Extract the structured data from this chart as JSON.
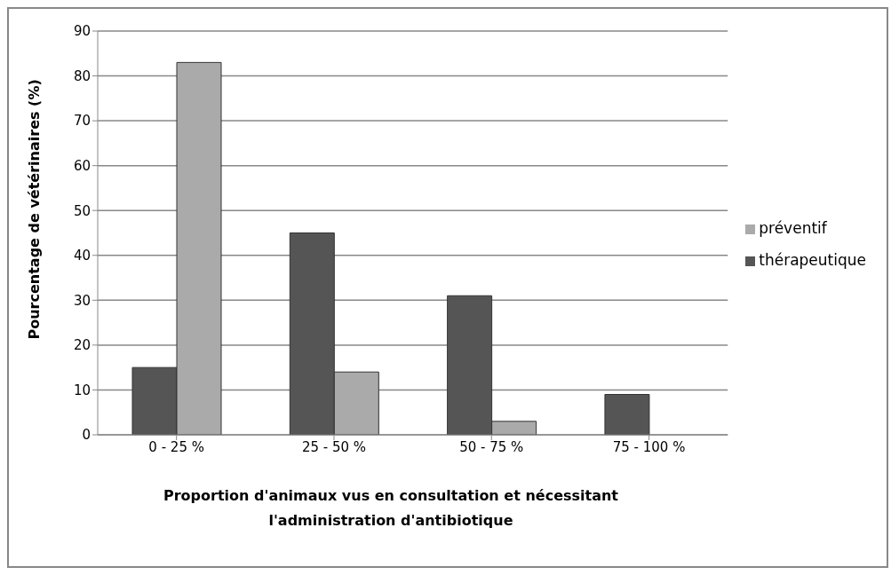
{
  "chart_data": {
    "type": "bar",
    "xlabel": "Proportion d'animaux vus en consultation et nécessitant l'administration d'antibiotique",
    "ylabel": "Pourcentage de vétérinaires (%)",
    "categories": [
      "0 - 25 %",
      "25 - 50 %",
      "50 - 75 %",
      "75 - 100 %"
    ],
    "series": [
      {
        "name": "thérapeutique",
        "color": "#555555",
        "values": [
          15,
          45,
          31,
          9
        ]
      },
      {
        "name": "préventif",
        "color": "#aaaaaa",
        "values": [
          83,
          14,
          3,
          null
        ]
      }
    ],
    "ylim": [
      0,
      90
    ],
    "yticks": [
      0,
      10,
      20,
      30,
      40,
      50,
      60,
      70,
      80,
      90
    ],
    "grid": "y",
    "legend": "right"
  }
}
